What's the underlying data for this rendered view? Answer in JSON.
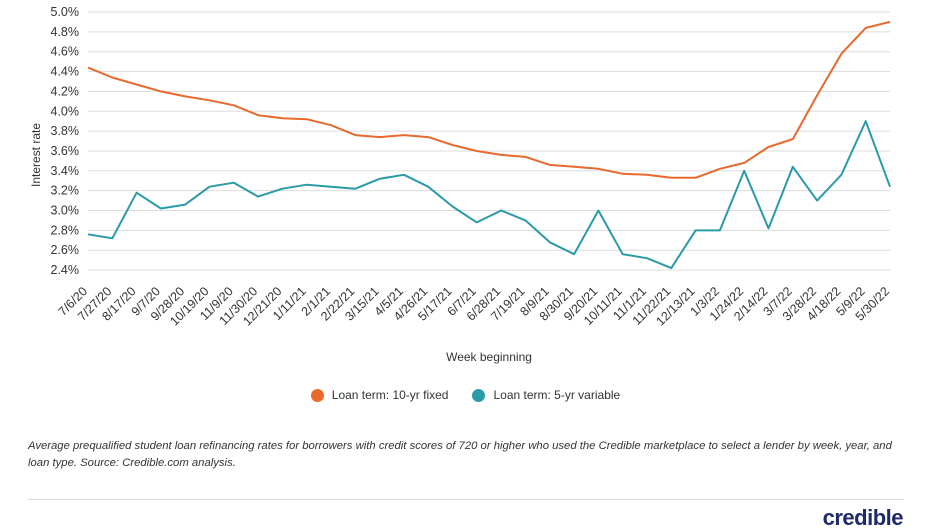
{
  "chart_data": {
    "type": "line",
    "ylabel": "Interest rate",
    "xlabel": "Week beginning",
    "ylim": [
      2.3,
      5.0
    ],
    "yticks": [
      "2.4%",
      "2.6%",
      "2.8%",
      "3.0%",
      "3.2%",
      "3.4%",
      "3.6%",
      "3.8%",
      "4.0%",
      "4.2%",
      "4.4%",
      "4.6%",
      "4.8%",
      "5.0%"
    ],
    "categories": [
      "7/6/20",
      "7/27/20",
      "8/17/20",
      "9/7/20",
      "9/28/20",
      "10/19/20",
      "11/9/20",
      "11/30/20",
      "12/21/20",
      "1/11/21",
      "2/1/21",
      "2/22/21",
      "3/15/21",
      "4/5/21",
      "4/26/21",
      "5/17/21",
      "6/7/21",
      "6/28/21",
      "7/19/21",
      "8/9/21",
      "8/30/21",
      "9/20/21",
      "10/11/21",
      "11/1/21",
      "11/22/21",
      "12/13/21",
      "1/3/22",
      "1/24/22",
      "2/14/22",
      "3/7/22",
      "3/28/22",
      "4/18/22",
      "5/9/22",
      "5/30/22"
    ],
    "grid": true,
    "legend_position": "bottom-center",
    "series": [
      {
        "name": "Loan term: 10-yr fixed",
        "color": "#e8692b",
        "values": [
          4.44,
          4.34,
          4.27,
          4.2,
          4.15,
          4.11,
          4.06,
          3.96,
          3.93,
          3.92,
          3.86,
          3.76,
          3.74,
          3.76,
          3.74,
          3.66,
          3.6,
          3.56,
          3.54,
          3.46,
          3.44,
          3.42,
          3.37,
          3.36,
          3.33,
          3.33,
          3.42,
          3.48,
          3.64,
          3.72,
          4.16,
          4.58,
          4.84,
          4.9
        ]
      },
      {
        "name": "Loan term: 5-yr variable",
        "color": "#2a9ba6",
        "values": [
          2.76,
          2.72,
          3.18,
          3.02,
          3.06,
          3.24,
          3.28,
          3.14,
          3.22,
          3.26,
          3.24,
          3.22,
          3.32,
          3.36,
          3.24,
          3.04,
          2.88,
          3.0,
          2.9,
          2.68,
          2.56,
          3.0,
          2.56,
          2.52,
          2.42,
          2.8,
          2.8,
          3.4,
          2.82,
          3.44,
          3.1,
          3.36,
          3.9,
          3.24
        ]
      }
    ]
  },
  "legend": {
    "items": [
      {
        "label": "Loan term: 10-yr fixed",
        "color": "#e8692b"
      },
      {
        "label": "Loan term: 5-yr variable",
        "color": "#2a9ba6"
      }
    ]
  },
  "caption": "Average prequalified student loan refinancing rates for borrowers with credit scores of 720 or higher who used the Credible marketplace to select a lender by week, year, and loan type. Source: Credible.com analysis.",
  "brand": {
    "logo_text": "credible",
    "color": "#1f2a6b"
  }
}
